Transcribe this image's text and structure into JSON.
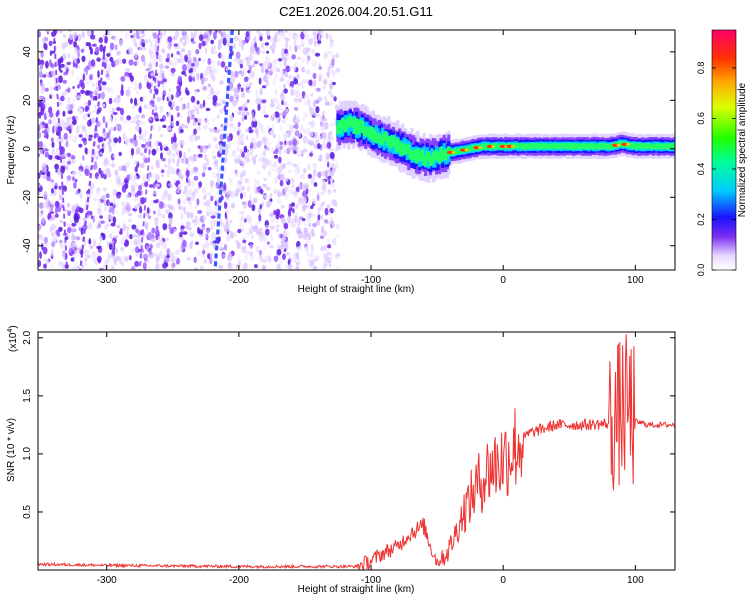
{
  "chart_data": [
    {
      "type": "heatmap",
      "title": "C2E1.2026.004.20.51.G11",
      "xlabel": "Height of straight line (km)",
      "ylabel": "Frequency (Hz)",
      "xlim": [
        -352,
        130
      ],
      "ylim": [
        -50,
        49
      ],
      "x_ticks": [
        -300,
        -200,
        -100,
        0,
        100
      ],
      "y_ticks": [
        -40,
        -20,
        0,
        20,
        40
      ],
      "noise_region_x": [
        -352,
        -125
      ],
      "signal_ridge": {
        "x": [
          -125,
          -115,
          -105,
          -95,
          -85,
          -75,
          -65,
          -55,
          -45,
          -35,
          -25,
          -15,
          -5,
          5,
          20,
          40,
          60,
          80,
          90,
          100,
          115,
          130
        ],
        "y": [
          9,
          10,
          8,
          5,
          3,
          0,
          -3,
          -4,
          -2,
          -1,
          0,
          1,
          1,
          1,
          1,
          1,
          1,
          1,
          2,
          1,
          1,
          1
        ]
      },
      "colorbar": {
        "label": "Normalized spectral amplitude",
        "range": [
          0.0,
          0.95
        ],
        "ticks": [
          0.0,
          0.2,
          0.4,
          0.6,
          0.8
        ]
      }
    },
    {
      "type": "line",
      "xlabel": "Height of straight line (km)",
      "ylabel": "SNR (10 * v/v)",
      "multiplier": "(x10",
      "multiplier_exp": "4",
      "multiplier_close": ")",
      "xlim": [
        -352,
        130
      ],
      "ylim": [
        0,
        2.05
      ],
      "x_ticks": [
        -300,
        -200,
        -100,
        0,
        100
      ],
      "y_ticks": [
        0.5,
        1.0,
        1.5,
        2.0
      ],
      "series": [
        {
          "name": "SNR",
          "color": "#ee3333",
          "x": [
            -352,
            -300,
            -200,
            -110,
            -100,
            -90,
            -80,
            -70,
            -60,
            -55,
            -50,
            -45,
            -40,
            -30,
            -20,
            -10,
            0,
            10,
            20,
            40,
            60,
            80,
            85,
            90,
            95,
            100,
            110,
            130
          ],
          "y": [
            0.05,
            0.04,
            0.03,
            0.03,
            0.08,
            0.15,
            0.2,
            0.32,
            0.38,
            0.2,
            0.07,
            0.12,
            0.2,
            0.5,
            0.72,
            0.88,
            0.95,
            1.08,
            1.18,
            1.25,
            1.25,
            1.26,
            1.3,
            1.38,
            1.4,
            1.28,
            1.25,
            1.25
          ]
        }
      ]
    }
  ]
}
